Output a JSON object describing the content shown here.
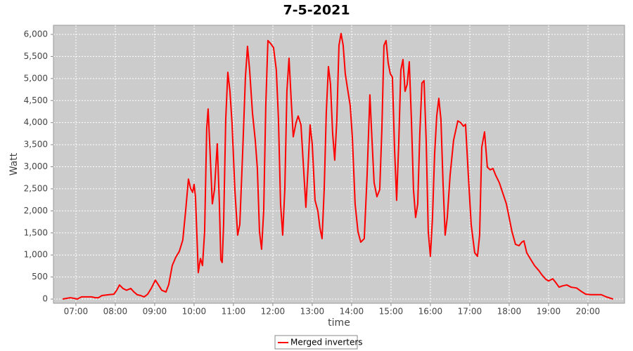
{
  "chart_data": {
    "type": "line",
    "title": "7-5-2021",
    "x_label": "time",
    "y_label": "Watt",
    "x": [
      6.661,
      6.857,
      6.929,
      7.036,
      7.143,
      7.25,
      7.393,
      7.5,
      7.571,
      7.661,
      7.839,
      7.964,
      8.036,
      8.107,
      8.196,
      8.286,
      8.393,
      8.464,
      8.554,
      8.643,
      8.732,
      8.821,
      8.911,
      9.018,
      9.089,
      9.179,
      9.286,
      9.357,
      9.446,
      9.536,
      9.625,
      9.714,
      9.786,
      9.857,
      9.911,
      9.964,
      10.0,
      10.036,
      10.107,
      10.161,
      10.214,
      10.268,
      10.321,
      10.357,
      10.393,
      10.464,
      10.518,
      10.589,
      10.643,
      10.679,
      10.714,
      10.75,
      10.804,
      10.857,
      10.911,
      10.964,
      11.036,
      11.107,
      11.161,
      11.232,
      11.304,
      11.357,
      11.411,
      11.482,
      11.554,
      11.607,
      11.661,
      11.714,
      11.768,
      11.821,
      11.875,
      11.946,
      12.018,
      12.089,
      12.143,
      12.196,
      12.25,
      12.304,
      12.357,
      12.411,
      12.464,
      12.518,
      12.589,
      12.643,
      12.714,
      12.786,
      12.839,
      12.893,
      12.946,
      13.0,
      13.071,
      13.143,
      13.196,
      13.25,
      13.304,
      13.357,
      13.411,
      13.464,
      13.518,
      13.571,
      13.625,
      13.679,
      13.732,
      13.786,
      13.839,
      13.893,
      13.964,
      14.018,
      14.089,
      14.161,
      14.232,
      14.321,
      14.393,
      14.464,
      14.518,
      14.571,
      14.643,
      14.714,
      14.768,
      14.821,
      14.875,
      14.929,
      14.982,
      15.036,
      15.089,
      15.143,
      15.196,
      15.25,
      15.304,
      15.357,
      15.411,
      15.464,
      15.518,
      15.571,
      15.625,
      15.679,
      15.732,
      15.786,
      15.839,
      15.893,
      15.946,
      16.0,
      16.054,
      16.107,
      16.161,
      16.214,
      16.268,
      16.321,
      16.375,
      16.429,
      16.5,
      16.589,
      16.696,
      16.768,
      16.839,
      16.893,
      16.964,
      17.036,
      17.125,
      17.196,
      17.25,
      17.304,
      17.375,
      17.446,
      17.518,
      17.589,
      17.661,
      17.75,
      17.839,
      17.929,
      18.0,
      18.071,
      18.161,
      18.25,
      18.321,
      18.375,
      18.446,
      18.554,
      18.643,
      18.75,
      18.839,
      18.929,
      19.0,
      19.107,
      19.179,
      19.268,
      19.357,
      19.464,
      19.571,
      19.714,
      19.821,
      19.946,
      20.071,
      20.214,
      20.339,
      20.464,
      20.643
    ],
    "series": [
      {
        "name": "Merged inverters",
        "color": "#ff0000",
        "values": [
          0,
          30,
          20,
          0,
          50,
          50,
          50,
          30,
          30,
          80,
          100,
          110,
          200,
          320,
          240,
          200,
          240,
          170,
          100,
          80,
          50,
          110,
          240,
          430,
          330,
          200,
          160,
          330,
          760,
          950,
          1080,
          1340,
          2000,
          2720,
          2510,
          2420,
          2600,
          2320,
          600,
          920,
          760,
          1530,
          3870,
          4310,
          3600,
          2160,
          2480,
          3520,
          2160,
          890,
          830,
          1690,
          4070,
          5140,
          4710,
          3990,
          2480,
          1450,
          1690,
          3280,
          5030,
          5730,
          5190,
          4230,
          3600,
          2960,
          1530,
          1130,
          2000,
          4390,
          5860,
          5790,
          5700,
          5190,
          4070,
          2160,
          1450,
          2480,
          4710,
          5460,
          4550,
          3680,
          4000,
          4150,
          3950,
          2880,
          2080,
          2960,
          3950,
          3520,
          2240,
          2000,
          1610,
          1370,
          2480,
          4230,
          5270,
          4870,
          3760,
          3150,
          4070,
          5750,
          6020,
          5750,
          5110,
          4790,
          4390,
          3680,
          2160,
          1530,
          1290,
          1370,
          2800,
          4630,
          3600,
          2640,
          2320,
          2480,
          3840,
          5750,
          5860,
          5350,
          5110,
          5030,
          3440,
          2240,
          3520,
          5190,
          5430,
          4710,
          4870,
          5380,
          4070,
          2480,
          1850,
          2160,
          3760,
          4900,
          4950,
          3600,
          1530,
          970,
          1850,
          3280,
          4150,
          4550,
          4070,
          2640,
          1450,
          1850,
          2800,
          3600,
          4040,
          4000,
          3920,
          3960,
          2800,
          1690,
          1050,
          970,
          1450,
          3440,
          3790,
          2990,
          2930,
          2960,
          2800,
          2640,
          2400,
          2160,
          1850,
          1530,
          1240,
          1210,
          1290,
          1320,
          1050,
          890,
          760,
          650,
          540,
          450,
          410,
          460,
          380,
          270,
          300,
          320,
          270,
          250,
          180,
          110,
          100,
          100,
          100,
          50,
          0
        ]
      }
    ],
    "xlim": [
      6.43,
      20.93
    ],
    "xticks": [
      {
        "value": 7,
        "label": "07:00"
      },
      {
        "value": 8,
        "label": "08:00"
      },
      {
        "value": 9,
        "label": "09:00"
      },
      {
        "value": 10,
        "label": "10:00"
      },
      {
        "value": 11,
        "label": "11:00"
      },
      {
        "value": 12,
        "label": "12:00"
      },
      {
        "value": 13,
        "label": "13:00"
      },
      {
        "value": 14,
        "label": "14:00"
      },
      {
        "value": 15,
        "label": "15:00"
      },
      {
        "value": 16,
        "label": "16:00"
      },
      {
        "value": 17,
        "label": "17:00"
      },
      {
        "value": 18,
        "label": "18:00"
      },
      {
        "value": 19,
        "label": "19:00"
      },
      {
        "value": 20,
        "label": "20:00"
      }
    ],
    "ylim": [
      -95,
      6207
    ],
    "yticks": [
      0,
      500,
      {
        "value": 1000,
        "label": "1,000"
      },
      {
        "value": 1500,
        "label": "1,500"
      },
      {
        "value": 2000,
        "label": "2,000"
      },
      {
        "value": 2500,
        "label": "2,500"
      },
      {
        "value": 3000,
        "label": "3,000"
      },
      {
        "value": 3500,
        "label": "3,500"
      },
      {
        "value": 4000,
        "label": "4,000"
      },
      {
        "value": 4500,
        "label": "4,500"
      },
      {
        "value": 5000,
        "label": "5,000"
      },
      {
        "value": 5500,
        "label": "5,500"
      },
      {
        "value": 6000,
        "label": "6,000"
      }
    ],
    "grid": true
  }
}
